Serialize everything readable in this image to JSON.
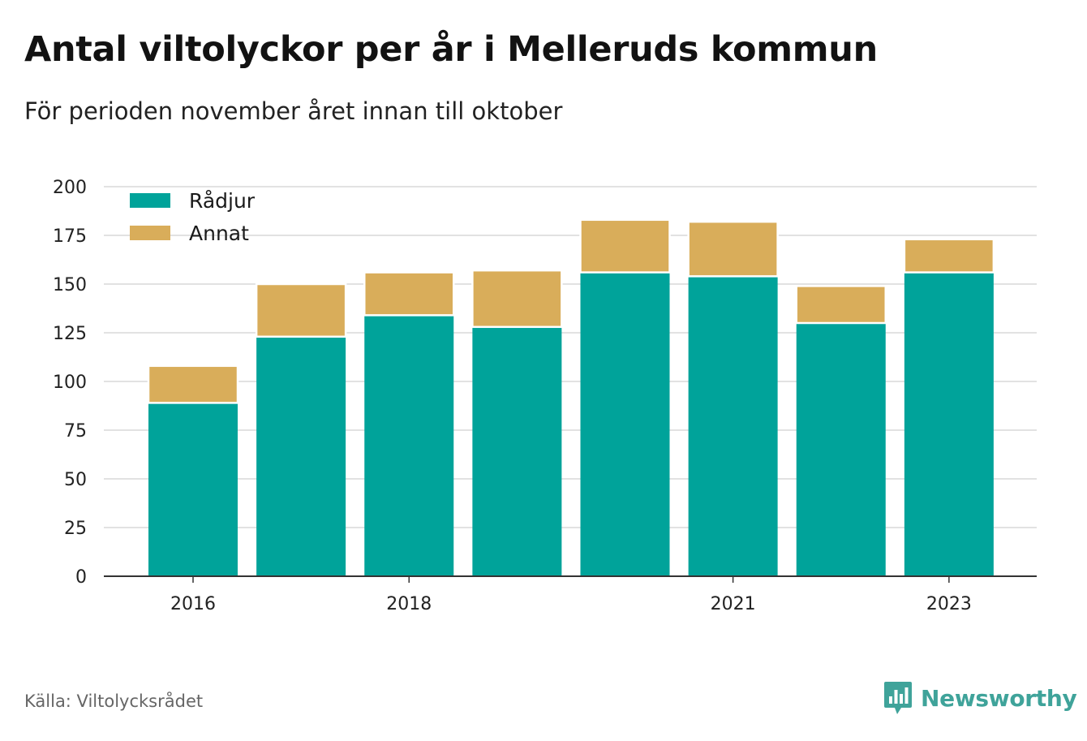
{
  "title": "Antal viltolyckor per år i Melleruds kommun",
  "subtitle": "För perioden november året innan till oktober",
  "source": "Källa: Viltolycksrådet",
  "brand": "Newsworthy",
  "colors": {
    "roe_deer": "#00a39a",
    "other": "#d9ad5a",
    "grid": "#d9d9d9",
    "axis": "#333333",
    "brand": "#3fa39a"
  },
  "chart_data": {
    "type": "bar",
    "stacked": true,
    "categories": [
      "2016",
      "2017",
      "2018",
      "2019",
      "2020",
      "2021",
      "2022",
      "2023"
    ],
    "x_tick_labels": [
      "2016",
      "",
      "2018",
      "",
      "",
      "2021",
      "",
      "2023"
    ],
    "series": [
      {
        "name": "Rådjur",
        "color": "#00a39a",
        "values": [
          89,
          123,
          134,
          128,
          156,
          154,
          130,
          156
        ]
      },
      {
        "name": "Annat",
        "color": "#d9ad5a",
        "values": [
          19,
          27,
          22,
          29,
          27,
          28,
          19,
          17
        ]
      }
    ],
    "ylim": [
      0,
      200
    ],
    "yticks": [
      0,
      25,
      50,
      75,
      100,
      125,
      150,
      175,
      200
    ],
    "grid": true,
    "legend_position": "top-left"
  }
}
